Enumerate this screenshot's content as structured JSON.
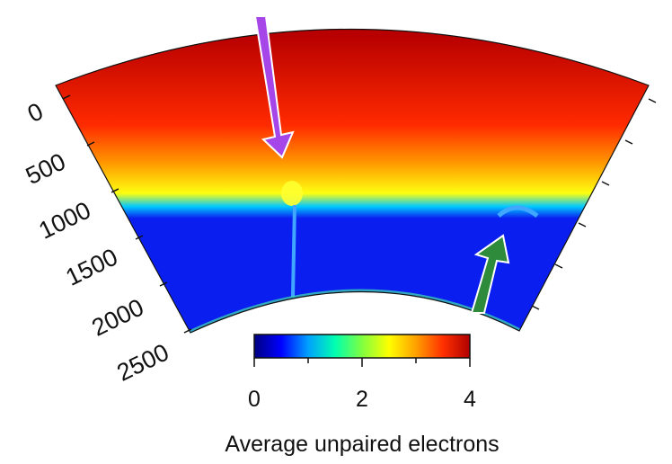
{
  "depth_axis": {
    "tick_labels": [
      "0",
      "500",
      "1000",
      "1500",
      "2000",
      "2500"
    ]
  },
  "colorbar": {
    "tick_labels": [
      "0",
      "2",
      "4"
    ],
    "title": "Average unpaired electrons",
    "range": [
      0,
      4
    ],
    "colors": [
      "#000080",
      "#0000ff",
      "#00a0ff",
      "#00ffb0",
      "#80ff40",
      "#ffff00",
      "#ffa000",
      "#ff3000",
      "#b00000"
    ]
  },
  "field_colors": {
    "top": "#b80000",
    "mid": "#ff2a00",
    "orange": "#ff9a00",
    "yellow": "#ffff10",
    "transition": "#00c8ff",
    "lower": "#0a1ef0"
  },
  "markers": {
    "downwelling_arrow": {
      "color": "#a646e8"
    },
    "upwelling_arrow": {
      "color": "#2e8b3c"
    }
  }
}
